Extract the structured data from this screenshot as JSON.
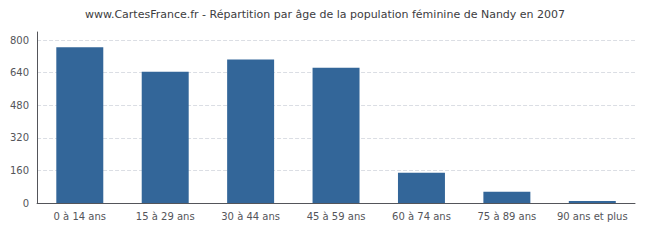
{
  "chart_data": {
    "type": "bar",
    "title": "www.CartesFrance.fr - Répartition par âge de la population féminine de Nandy en 2007",
    "categories": [
      "0 à 14 ans",
      "15 à 29 ans",
      "30 à 44 ans",
      "45 à 59 ans",
      "60 à 74 ans",
      "75 à 89 ans",
      "90 ans et plus"
    ],
    "values": [
      765,
      645,
      705,
      665,
      148,
      55,
      10
    ],
    "color": "#336699",
    "ylim": [
      0,
      840
    ],
    "yticks": [
      0,
      160,
      320,
      480,
      640,
      800
    ],
    "grid": true
  }
}
